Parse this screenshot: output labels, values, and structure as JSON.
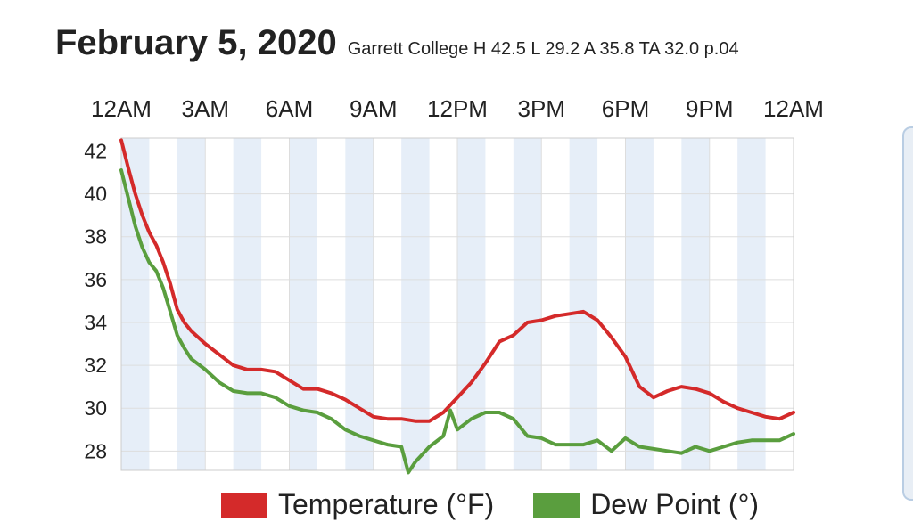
{
  "header": {
    "title": "February 5, 2020",
    "subtitle": "Garrett College H 42.5 L 29.2 A 35.8 TA 32.0 p.04"
  },
  "colors": {
    "temperature": "#d42a2a",
    "dew_point": "#5a9e3e",
    "band": "#e6eef8",
    "grid": "#dddddd"
  },
  "chart_data": {
    "type": "line",
    "x_unit": "hour of day",
    "x_tick_labels": [
      "12AM",
      "3AM",
      "6AM",
      "9AM",
      "12PM",
      "3PM",
      "6PM",
      "9PM",
      "12AM"
    ],
    "x_tick_hours": [
      0,
      3,
      6,
      9,
      12,
      15,
      18,
      21,
      24
    ],
    "y_tick_labels": [
      "42",
      "40",
      "38",
      "36",
      "34",
      "32",
      "30",
      "28"
    ],
    "y_ticks": [
      42,
      40,
      38,
      36,
      34,
      32,
      30,
      28
    ],
    "ylim": [
      27.1,
      42.6
    ],
    "xlim": [
      0,
      24
    ],
    "grid": true,
    "legend_position": "bottom",
    "series": [
      {
        "name": "Temperature (°F)",
        "color": "#d42a2a",
        "x": [
          0,
          0.25,
          0.5,
          0.75,
          1,
          1.25,
          1.5,
          1.75,
          2,
          2.25,
          2.5,
          3,
          3.5,
          4,
          4.5,
          5,
          5.5,
          6,
          6.5,
          7,
          7.5,
          8,
          8.5,
          9,
          9.5,
          10,
          10.5,
          11,
          11.5,
          12,
          12.5,
          13,
          13.5,
          14,
          14.5,
          15,
          15.5,
          16,
          16.5,
          17,
          17.5,
          18,
          18.5,
          19,
          19.5,
          20,
          20.5,
          21,
          21.5,
          22,
          22.5,
          23,
          23.5,
          24
        ],
        "y": [
          42.5,
          41.2,
          40.0,
          39.0,
          38.2,
          37.6,
          36.8,
          35.8,
          34.6,
          34.0,
          33.6,
          33.0,
          32.5,
          32.0,
          31.8,
          31.8,
          31.7,
          31.3,
          30.9,
          30.9,
          30.7,
          30.4,
          30.0,
          29.6,
          29.5,
          29.5,
          29.4,
          29.4,
          29.8,
          30.5,
          31.2,
          32.1,
          33.1,
          33.4,
          34.0,
          34.1,
          34.3,
          34.4,
          34.5,
          34.1,
          33.3,
          32.4,
          31.0,
          30.5,
          30.8,
          31.0,
          30.9,
          30.7,
          30.3,
          30.0,
          29.8,
          29.6,
          29.5,
          29.8
        ]
      },
      {
        "name": "Dew Point (°)",
        "color": "#5a9e3e",
        "x": [
          0,
          0.25,
          0.5,
          0.75,
          1,
          1.25,
          1.5,
          1.75,
          2,
          2.25,
          2.5,
          3,
          3.5,
          4,
          4.5,
          5,
          5.5,
          6,
          6.5,
          7,
          7.5,
          8,
          8.5,
          9,
          9.5,
          10,
          10.25,
          10.5,
          11,
          11.5,
          11.75,
          12,
          12.5,
          13,
          13.5,
          14,
          14.5,
          15,
          15.5,
          16,
          16.5,
          17,
          17.5,
          18,
          18.5,
          19,
          19.5,
          20,
          20.5,
          21,
          21.5,
          22,
          22.5,
          23,
          23.5,
          24
        ],
        "y": [
          41.1,
          39.8,
          38.5,
          37.5,
          36.8,
          36.4,
          35.6,
          34.5,
          33.4,
          32.8,
          32.3,
          31.8,
          31.2,
          30.8,
          30.7,
          30.7,
          30.5,
          30.1,
          29.9,
          29.8,
          29.5,
          29.0,
          28.7,
          28.5,
          28.3,
          28.2,
          27.0,
          27.5,
          28.2,
          28.7,
          29.9,
          29.0,
          29.5,
          29.8,
          29.8,
          29.5,
          28.7,
          28.6,
          28.3,
          28.3,
          28.3,
          28.5,
          28.0,
          28.6,
          28.2,
          28.1,
          28.0,
          27.9,
          28.2,
          28.0,
          28.2,
          28.4,
          28.5,
          28.5,
          28.5,
          28.8
        ]
      }
    ]
  }
}
